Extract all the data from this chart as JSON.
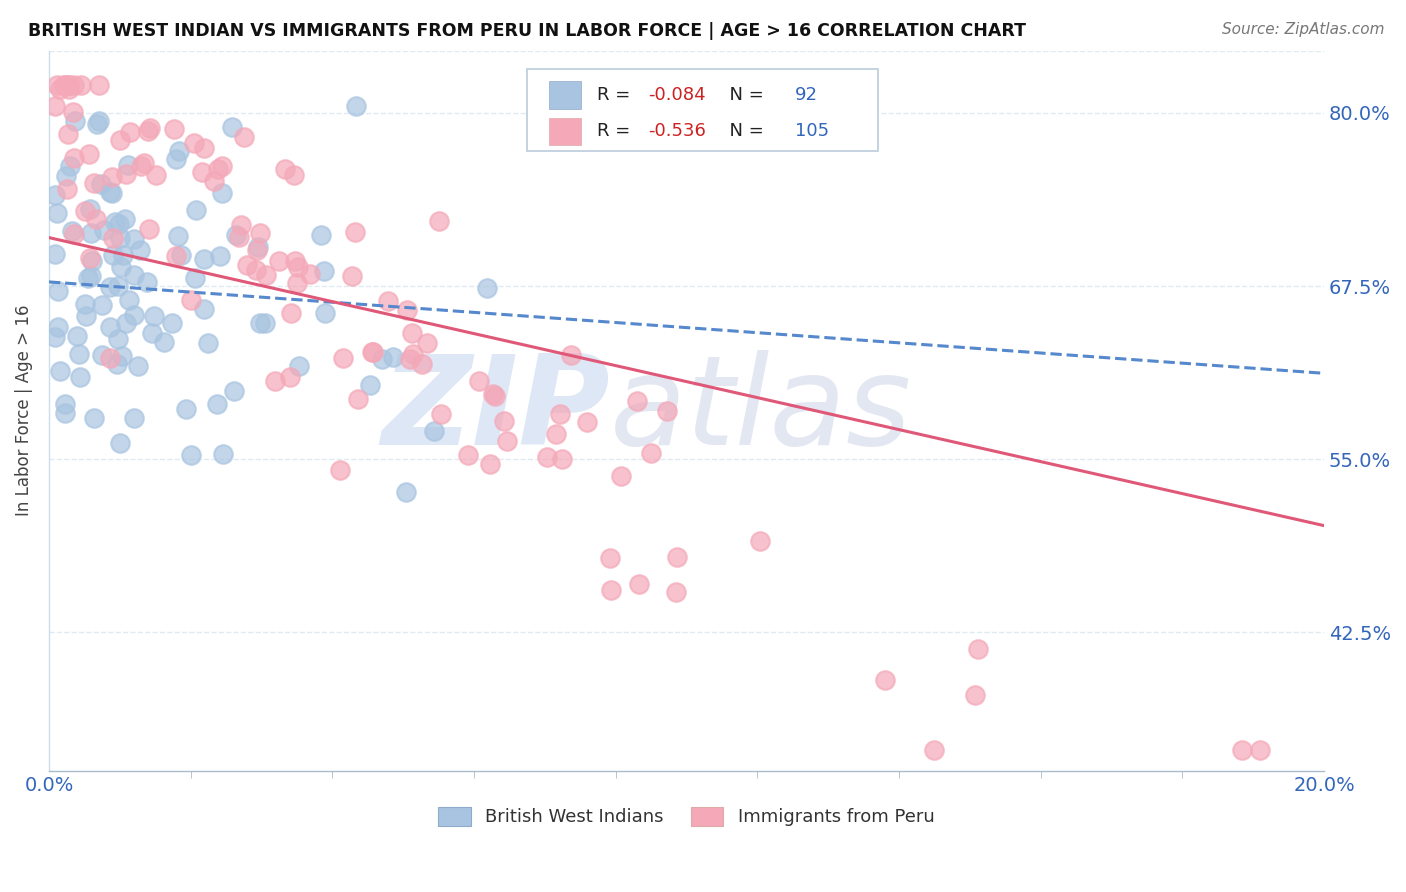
{
  "title": "BRITISH WEST INDIAN VS IMMIGRANTS FROM PERU IN LABOR FORCE | AGE > 16 CORRELATION CHART",
  "source": "Source: ZipAtlas.com",
  "ylabel": "In Labor Force | Age > 16",
  "xlim": [
    0.0,
    0.2
  ],
  "ylim": [
    0.325,
    0.845
  ],
  "yticks": [
    0.425,
    0.55,
    0.675,
    0.8
  ],
  "ytick_labels": [
    "42.5%",
    "55.0%",
    "67.5%",
    "80.0%"
  ],
  "blue_R": -0.084,
  "blue_N": 92,
  "pink_R": -0.536,
  "pink_N": 105,
  "blue_color": "#a8c4e0",
  "pink_color": "#f4a8b8",
  "blue_line_color": "#5588cc",
  "pink_line_color": "#e05878",
  "legend_label_blue": "British West Indians",
  "legend_label_pink": "Immigrants from Peru",
  "watermark_zip_color": "#c8d8f0",
  "watermark_atlas_color": "#d0d8e8",
  "background_color": "#ffffff",
  "grid_color": "#dde8f0",
  "blue_intercept": 0.678,
  "blue_slope": -0.33,
  "pink_intercept": 0.71,
  "pink_slope": -1.04
}
